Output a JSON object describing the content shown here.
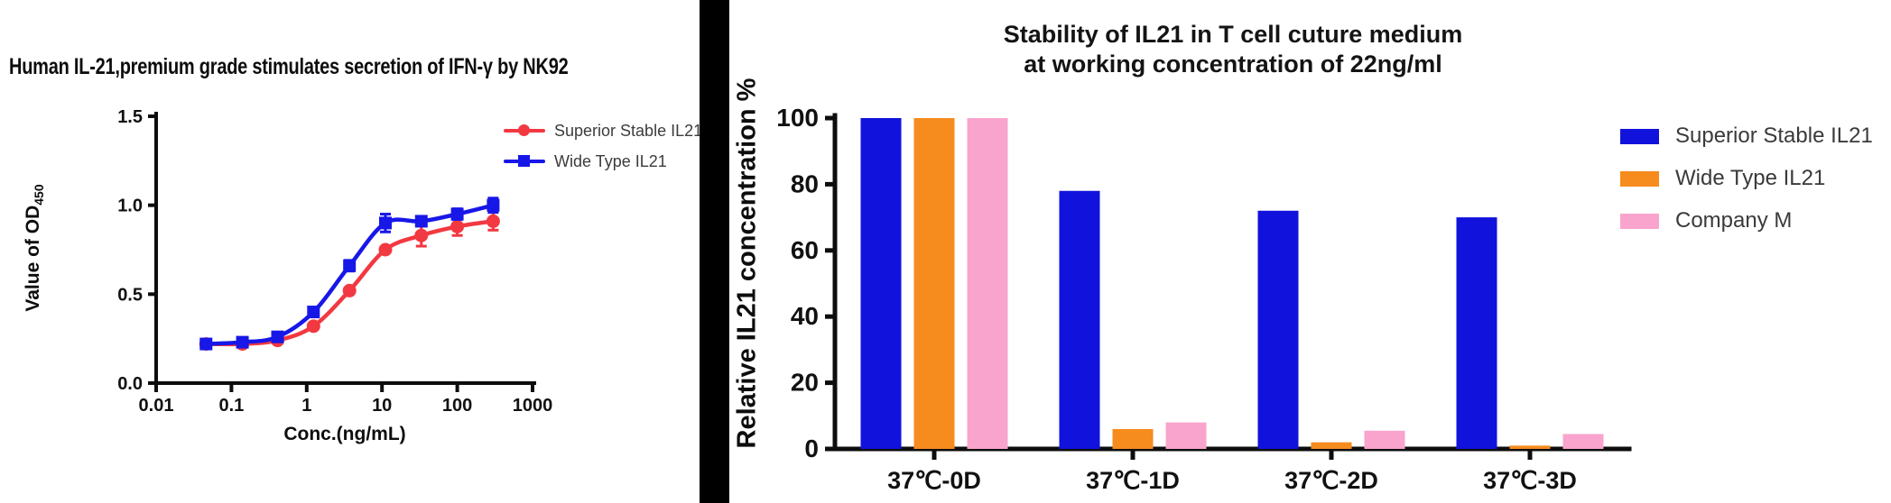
{
  "page": {
    "background": "#ffffff",
    "divider_color": "#000000"
  },
  "chart_data": [
    {
      "id": "ifn-secretion-curve",
      "type": "line",
      "title": "Human IL-21,premium grade stimulates secretion of  IFN-γ by NK92",
      "xlabel": "Conc.(ng/mL)",
      "ylabel": "Value of OD",
      "ylabel_subscript": "450",
      "x_scale": "log10",
      "xlim": [
        0.01,
        1000
      ],
      "ylim": [
        0,
        1.5
      ],
      "x_tick_labels": [
        "0.01",
        "0.1",
        "1",
        "10",
        "100",
        "1000"
      ],
      "x_ticks": [
        0.01,
        0.1,
        1,
        10,
        100,
        1000
      ],
      "y_tick_labels": [
        "0.0",
        "0.5",
        "1.0",
        "1.5"
      ],
      "y_ticks": [
        0,
        0.5,
        1.0,
        1.5
      ],
      "x": [
        0.046,
        0.14,
        0.41,
        1.23,
        3.7,
        11.1,
        33.3,
        100,
        300
      ],
      "series": [
        {
          "name": "Superior Stable IL21",
          "marker": "circle",
          "color": "#f23840",
          "values": [
            0.22,
            0.22,
            0.24,
            0.32,
            0.52,
            0.75,
            0.83,
            0.88,
            0.91
          ],
          "errors": [
            0,
            0,
            0,
            0,
            0,
            0,
            0.06,
            0.05,
            0.05
          ]
        },
        {
          "name": "Wide Type IL21",
          "marker": "square",
          "color": "#1717e8",
          "values": [
            0.22,
            0.23,
            0.26,
            0.4,
            0.66,
            0.9,
            0.91,
            0.95,
            1.0
          ],
          "errors": [
            0,
            0,
            0,
            0,
            0.03,
            0.05,
            0,
            0.03,
            0.04
          ]
        }
      ],
      "legend_position": "top-right",
      "grid": false
    },
    {
      "id": "il21-stability-bars",
      "type": "bar",
      "title_line1": "Stability of IL21 in T cell cuture medium",
      "title_line2": "at working concentration of 22ng/ml",
      "ylabel": "Relative IL21 concentration %",
      "ylim": [
        0,
        100
      ],
      "y_ticks": [
        0,
        20,
        40,
        60,
        80,
        100
      ],
      "y_tick_labels": [
        "0",
        "20",
        "40",
        "60",
        "80",
        "100"
      ],
      "categories": [
        "37℃-0D",
        "37℃-1D",
        "37℃-2D",
        "37℃-3D"
      ],
      "series": [
        {
          "name": "Superior Stable IL21",
          "color": "#1212dd",
          "values": [
            100,
            78,
            72,
            70
          ]
        },
        {
          "name": "Wide Type IL21",
          "color": "#f68b1e",
          "values": [
            100,
            6,
            2,
            1
          ]
        },
        {
          "name": "Company M",
          "color": "#f9a4cc",
          "values": [
            100,
            8,
            5.5,
            4.5
          ]
        }
      ],
      "legend_position": "right",
      "grid": false
    }
  ]
}
